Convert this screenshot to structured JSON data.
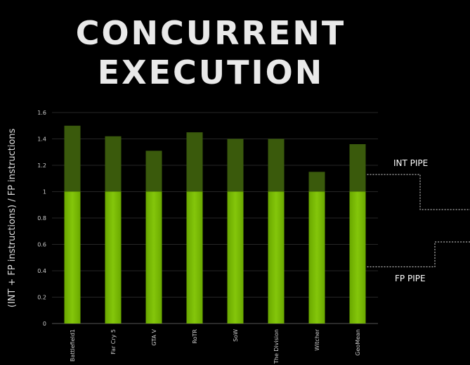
{
  "title_lines": [
    "CONCURRENT",
    "EXECUTION"
  ],
  "chart_data": {
    "type": "bar",
    "stacked": true,
    "ylabel": "(INT + FP instructions) / FP instructions",
    "xlabel": "",
    "ylim": [
      0,
      1.6
    ],
    "yticks": [
      "0",
      "0.2",
      "0.4",
      "0.6",
      "0.8",
      "1",
      "1.2",
      "1.4",
      "1.6"
    ],
    "grid": true,
    "categories": [
      "Battlefield1",
      "Far Cry 5",
      "GTA V",
      "RoTR",
      "SoW",
      "The Division",
      "Witcher",
      "GeoMean"
    ],
    "series": [
      {
        "name": "FP PIPE",
        "color": "#76b900",
        "values": [
          1,
          1,
          1,
          1,
          1,
          1,
          1,
          1
        ]
      },
      {
        "name": "INT PIPE",
        "color": "#3a5a0c",
        "values": [
          0.5,
          0.42,
          0.31,
          0.45,
          0.4,
          0.4,
          0.15,
          0.36
        ]
      }
    ],
    "annotations": [
      "INT PIPE",
      "FP PIPE"
    ]
  }
}
